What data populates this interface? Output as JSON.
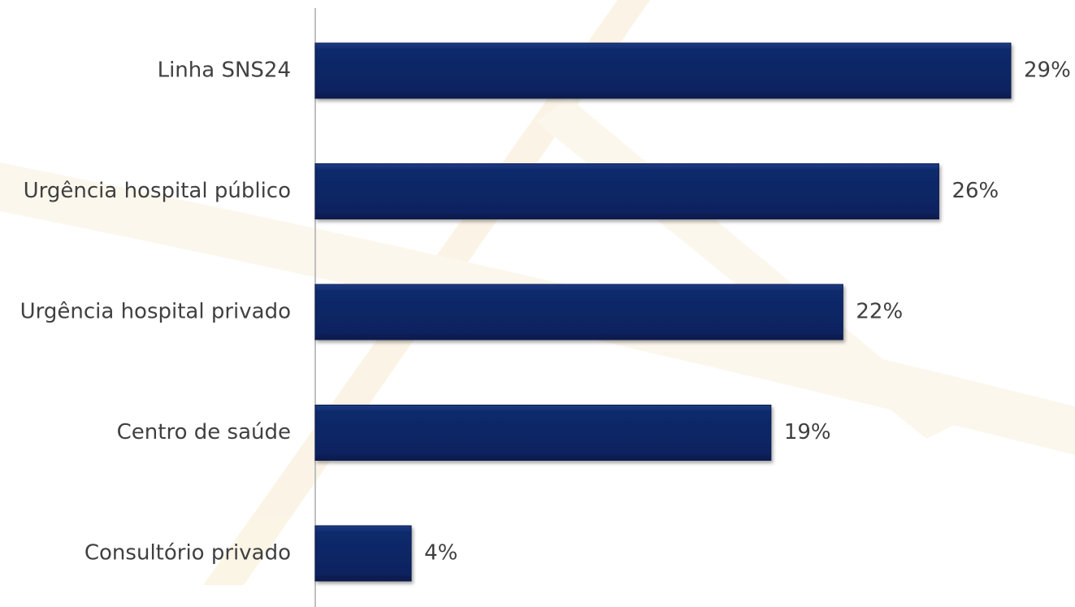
{
  "chart_data": {
    "type": "bar",
    "orientation": "horizontal",
    "categories": [
      "Linha SNS24",
      "Urgência hospital público",
      "Urgência hospital privado",
      "Centro de saúde",
      "Consultório privado"
    ],
    "values": [
      29,
      26,
      22,
      19,
      4
    ],
    "value_labels": [
      "29%",
      "26%",
      "22%",
      "19%",
      "4%"
    ],
    "title": "",
    "xlabel": "",
    "ylabel": "",
    "xlim": [
      0,
      29
    ],
    "grid": false,
    "legend": "none",
    "colors": {
      "bar": "#0f2a6b",
      "bar_dark": "#0a1d4e",
      "axis": "#bfbfbf",
      "text": "#404040",
      "watermark": "#f6e9cc"
    }
  }
}
